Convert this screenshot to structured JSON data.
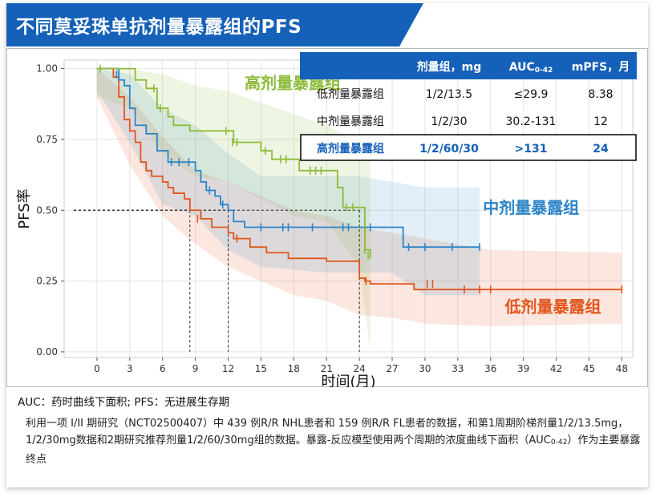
{
  "title": "不同莫妥珠单抗剂量暴露组的PFS",
  "colors": {
    "banner": "#1560b8",
    "low": "#e2551c",
    "mid": "#2c85c8",
    "high": "#8dbb3a",
    "table_header": "#1560b8"
  },
  "table": {
    "headers": [
      "",
      "剂量组，mg",
      "AUC0-42",
      "mPFS，月"
    ],
    "rows": [
      {
        "group": "低剂量暴露组",
        "dose": "1/2/13.5",
        "auc": "≤29.9",
        "mpfs": "8.38"
      },
      {
        "group": "中剂量暴露组",
        "dose": "1/2/30",
        "auc": "30.2-131",
        "mpfs": "12"
      },
      {
        "group": "高剂量暴露组",
        "dose": "1/2/60/30",
        "auc": ">131",
        "mpfs": "24"
      }
    ]
  },
  "chart_data": {
    "type": "line",
    "xlabel": "时间(月)",
    "ylabel": "PFS率",
    "xlim": [
      -3,
      49
    ],
    "ylim": [
      -0.02,
      1.03
    ],
    "xticks": [
      0,
      3,
      6,
      9,
      12,
      15,
      18,
      21,
      24,
      27,
      30,
      33,
      36,
      39,
      42,
      45,
      48
    ],
    "yticks": [
      0.0,
      0.25,
      0.5,
      0.75,
      1.0
    ],
    "ytick_labels": [
      "0.00",
      "0.25",
      "0.50",
      "0.75",
      "1.00"
    ],
    "grid": true,
    "series": [
      {
        "name": "低剂量暴露组",
        "color": "#e2551c",
        "step": [
          [
            0,
            1.0
          ],
          [
            1,
            1.0
          ],
          [
            1.5,
            0.97
          ],
          [
            2,
            0.9
          ],
          [
            2.5,
            0.82
          ],
          [
            3,
            0.78
          ],
          [
            3.5,
            0.74
          ],
          [
            4,
            0.67
          ],
          [
            4.5,
            0.64
          ],
          [
            5,
            0.62
          ],
          [
            6,
            0.6
          ],
          [
            6.5,
            0.58
          ],
          [
            7,
            0.56
          ],
          [
            8,
            0.54
          ],
          [
            8.5,
            0.5
          ],
          [
            9.5,
            0.47
          ],
          [
            10.5,
            0.44
          ],
          [
            12,
            0.42
          ],
          [
            12.5,
            0.4
          ],
          [
            14,
            0.37
          ],
          [
            15.5,
            0.35
          ],
          [
            17.5,
            0.33
          ],
          [
            21,
            0.32
          ],
          [
            24,
            0.26
          ],
          [
            24.5,
            0.25
          ],
          [
            25,
            0.24
          ],
          [
            29,
            0.22
          ],
          [
            48,
            0.22
          ]
        ],
        "censor": [
          [
            9.2,
            0.47
          ],
          [
            12.8,
            0.4
          ],
          [
            24.6,
            0.25
          ],
          [
            30.2,
            0.24
          ],
          [
            30.7,
            0.24
          ],
          [
            33.6,
            0.22
          ],
          [
            35,
            0.22
          ],
          [
            36,
            0.22
          ],
          [
            48,
            0.22
          ]
        ],
        "ci_upper": [
          [
            0,
            1.0
          ],
          [
            3,
            0.9
          ],
          [
            6,
            0.76
          ],
          [
            9,
            0.64
          ],
          [
            12,
            0.6
          ],
          [
            15,
            0.55
          ],
          [
            18,
            0.5
          ],
          [
            21,
            0.48
          ],
          [
            24,
            0.44
          ],
          [
            27,
            0.42
          ],
          [
            30,
            0.4
          ],
          [
            36,
            0.36
          ],
          [
            48,
            0.35
          ]
        ],
        "ci_lower": [
          [
            0,
            0.9
          ],
          [
            3,
            0.66
          ],
          [
            6,
            0.48
          ],
          [
            9,
            0.38
          ],
          [
            12,
            0.3
          ],
          [
            15,
            0.25
          ],
          [
            18,
            0.2
          ],
          [
            21,
            0.18
          ],
          [
            24,
            0.13
          ],
          [
            27,
            0.12
          ],
          [
            30,
            0.1
          ],
          [
            36,
            0.09
          ],
          [
            48,
            0.1
          ]
        ]
      },
      {
        "name": "中剂量暴露组",
        "color": "#2c85c8",
        "step": [
          [
            0,
            1.0
          ],
          [
            1.5,
            1.0
          ],
          [
            2,
            0.96
          ],
          [
            2.5,
            0.94
          ],
          [
            3,
            0.86
          ],
          [
            3.5,
            0.8
          ],
          [
            4.5,
            0.77
          ],
          [
            5.5,
            0.71
          ],
          [
            6.5,
            0.67
          ],
          [
            9,
            0.64
          ],
          [
            9.5,
            0.6
          ],
          [
            10,
            0.57
          ],
          [
            10.8,
            0.55
          ],
          [
            11.3,
            0.52
          ],
          [
            12,
            0.5
          ],
          [
            12.5,
            0.46
          ],
          [
            13.5,
            0.44
          ],
          [
            27.5,
            0.44
          ],
          [
            28,
            0.37
          ],
          [
            35,
            0.37
          ]
        ],
        "censor": [
          [
            1.8,
            0.98
          ],
          [
            6.8,
            0.67
          ],
          [
            7.5,
            0.67
          ],
          [
            8.4,
            0.67
          ],
          [
            10.3,
            0.57
          ],
          [
            11.5,
            0.52
          ],
          [
            15,
            0.44
          ],
          [
            17,
            0.44
          ],
          [
            17.5,
            0.44
          ],
          [
            19.7,
            0.44
          ],
          [
            22.5,
            0.44
          ],
          [
            23,
            0.44
          ],
          [
            24.5,
            0.44
          ],
          [
            25,
            0.44
          ],
          [
            28.5,
            0.37
          ],
          [
            30,
            0.37
          ],
          [
            32.5,
            0.37
          ],
          [
            35,
            0.37
          ]
        ],
        "ci_upper": [
          [
            0,
            1.0
          ],
          [
            3,
            0.98
          ],
          [
            6,
            0.86
          ],
          [
            9,
            0.8
          ],
          [
            12,
            0.7
          ],
          [
            15,
            0.62
          ],
          [
            21,
            0.62
          ],
          [
            24,
            0.62
          ],
          [
            27,
            0.6
          ],
          [
            30,
            0.58
          ],
          [
            35,
            0.58
          ]
        ],
        "ci_lower": [
          [
            0,
            0.92
          ],
          [
            3,
            0.74
          ],
          [
            6,
            0.52
          ],
          [
            9,
            0.48
          ],
          [
            12,
            0.36
          ],
          [
            15,
            0.3
          ],
          [
            21,
            0.28
          ],
          [
            24,
            0.28
          ],
          [
            27,
            0.28
          ],
          [
            30,
            0.2
          ],
          [
            35,
            0.2
          ]
        ]
      },
      {
        "name": "高剂量暴露组",
        "color": "#8dbb3a",
        "step": [
          [
            0,
            1.0
          ],
          [
            3,
            1.0
          ],
          [
            3.5,
            0.96
          ],
          [
            4.5,
            0.93
          ],
          [
            5.5,
            0.86
          ],
          [
            6.5,
            0.83
          ],
          [
            7,
            0.8
          ],
          [
            8.5,
            0.78
          ],
          [
            12,
            0.78
          ],
          [
            12.5,
            0.74
          ],
          [
            14.5,
            0.74
          ],
          [
            15,
            0.71
          ],
          [
            16,
            0.68
          ],
          [
            18,
            0.68
          ],
          [
            18.5,
            0.64
          ],
          [
            21.5,
            0.64
          ],
          [
            22,
            0.58
          ],
          [
            22.5,
            0.51
          ],
          [
            24,
            0.51
          ],
          [
            24.5,
            0.36
          ],
          [
            25,
            0.33
          ]
        ],
        "censor": [
          [
            0.3,
            1.0
          ],
          [
            5.2,
            0.93
          ],
          [
            5.8,
            0.86
          ],
          [
            11.8,
            0.78
          ],
          [
            12.4,
            0.74
          ],
          [
            12.8,
            0.74
          ],
          [
            15.4,
            0.71
          ],
          [
            16.8,
            0.68
          ],
          [
            17.3,
            0.68
          ],
          [
            19.5,
            0.64
          ],
          [
            20,
            0.64
          ],
          [
            20.5,
            0.64
          ],
          [
            22.8,
            0.51
          ],
          [
            23.4,
            0.51
          ],
          [
            24.5,
            0.36
          ],
          [
            24.8,
            0.34
          ]
        ],
        "ci_upper": [
          [
            0,
            1.0
          ],
          [
            3,
            1.0
          ],
          [
            6,
            0.98
          ],
          [
            9,
            0.94
          ],
          [
            12,
            0.92
          ],
          [
            15,
            0.88
          ],
          [
            18,
            0.84
          ],
          [
            21,
            0.8
          ],
          [
            24,
            0.74
          ],
          [
            25,
            0.7
          ]
        ],
        "ci_lower": [
          [
            0,
            0.9
          ],
          [
            3,
            0.86
          ],
          [
            6,
            0.7
          ],
          [
            9,
            0.62
          ],
          [
            12,
            0.6
          ],
          [
            15,
            0.54
          ],
          [
            18,
            0.48
          ],
          [
            21,
            0.46
          ],
          [
            24,
            0.3
          ],
          [
            25,
            0.0
          ]
        ]
      }
    ],
    "median_lines": [
      {
        "x": 8.5,
        "y": 0.5
      },
      {
        "x": 12,
        "y": 0.5
      },
      {
        "x": 24,
        "y": 0.5
      }
    ],
    "annotations": [
      {
        "text": "高剂量暴露组",
        "color": "#8dbb3a",
        "x": 13.5,
        "y": 0.93
      },
      {
        "text": "中剂量暴露组",
        "color": "#2c85c8",
        "x": 35.3,
        "y": 0.49
      },
      {
        "text": "低剂量暴露组",
        "color": "#e2551c",
        "x": 37.3,
        "y": 0.14
      }
    ]
  },
  "notes": {
    "abbrev": "AUC：药时曲线下面积; PFS：无进展生存期",
    "desc_before": "利用一项 I/II 期研究（NCT02500407）中 439 例R/R NHL患者和 159 例R/R FL患者的数据，和第1周期阶梯剂量1/2/13.5mg，1/2/30mg数据和2期研究推荐剂量1/2/60/30mg组的数据。暴露-反应模型使用两个周期的浓度曲线下面积（AUC",
    "desc_sub": "0-42",
    "desc_after": "）作为主要暴露终点"
  }
}
